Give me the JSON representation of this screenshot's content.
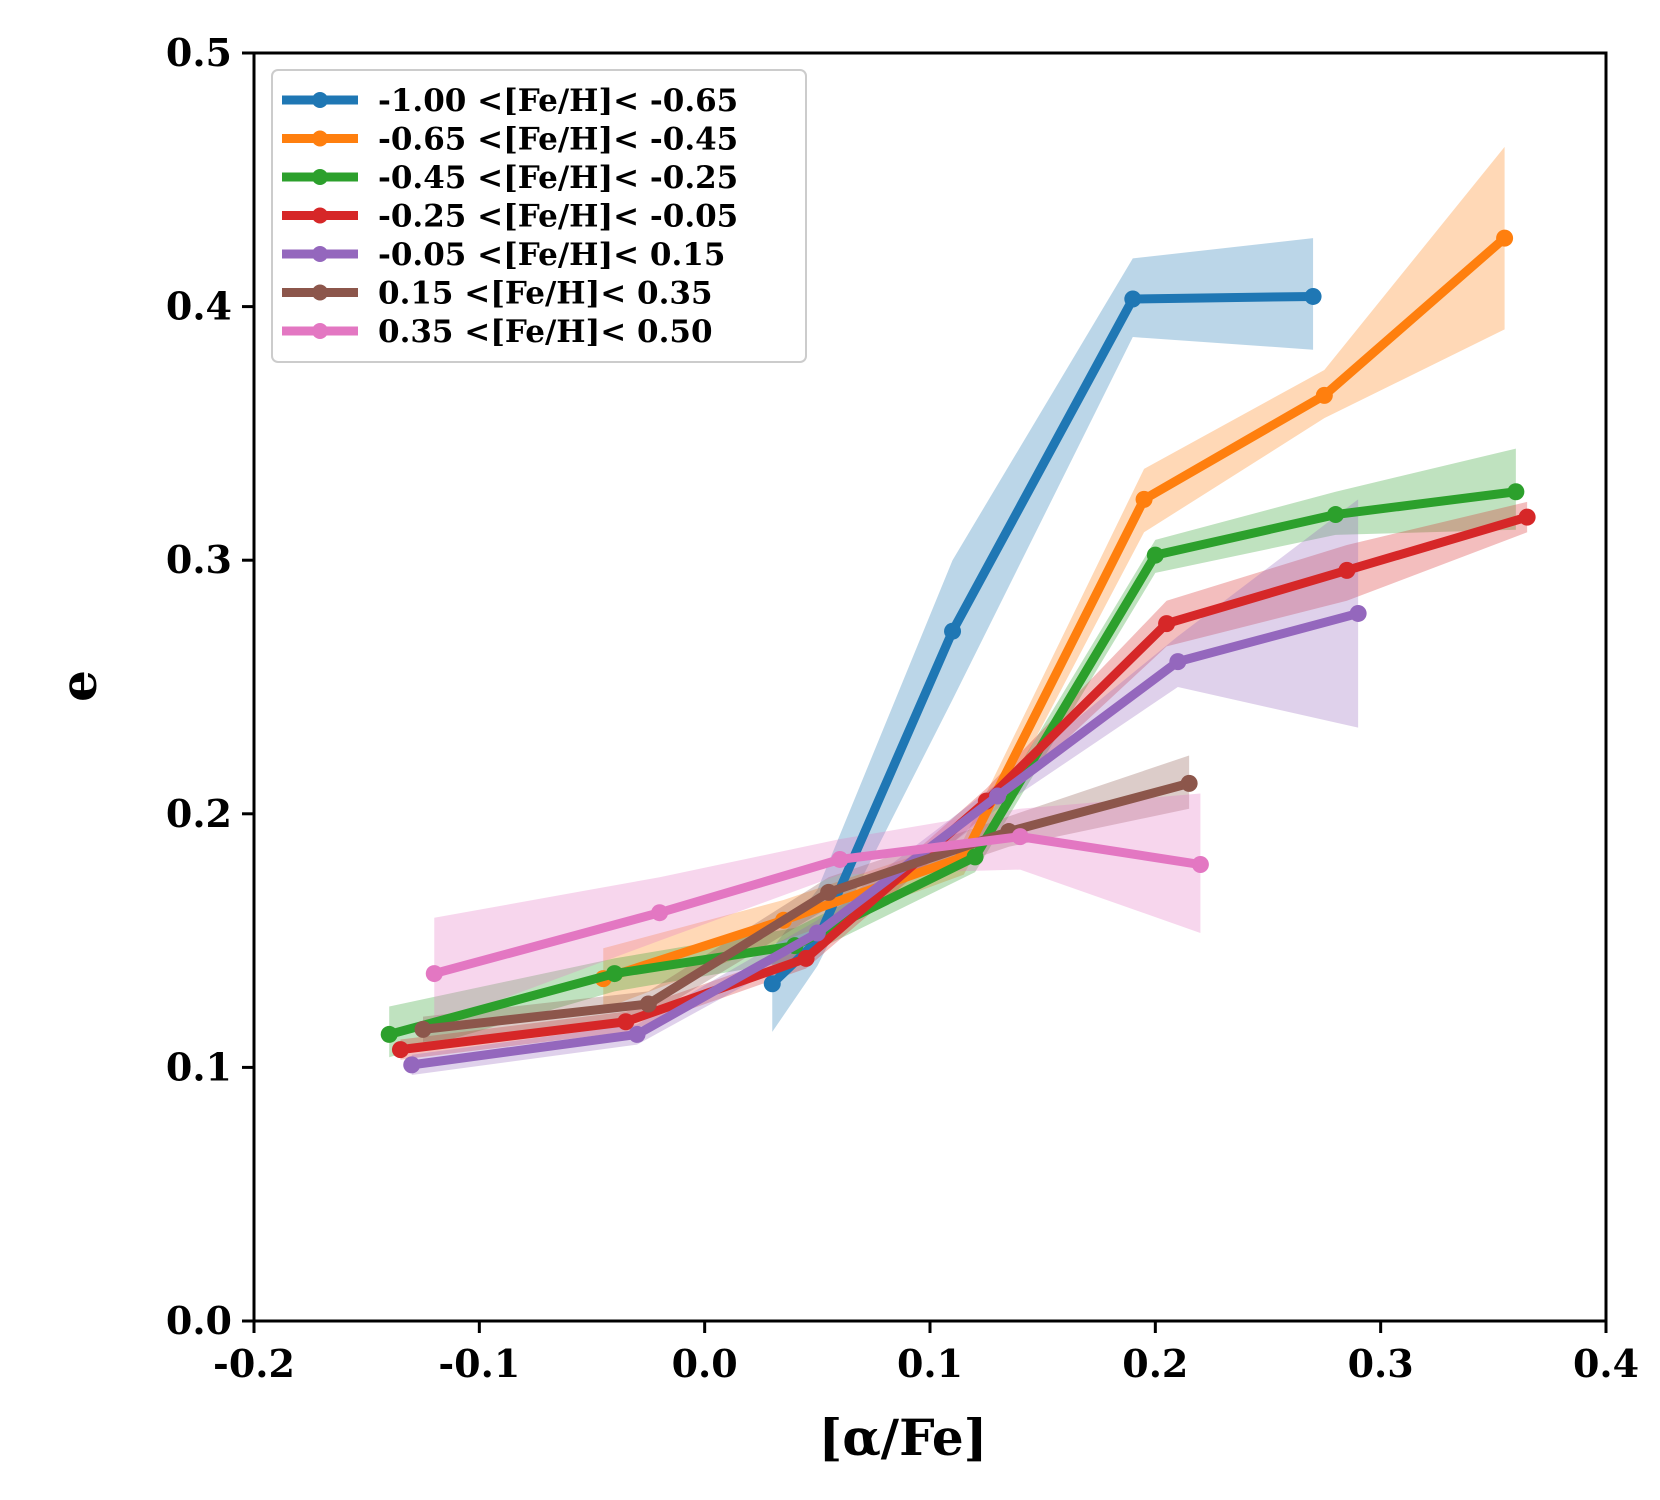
{
  "chart_data": {
    "type": "line",
    "xlabel": "[α/Fe]",
    "ylabel": "e",
    "xlim": [
      -0.2,
      0.4
    ],
    "ylim": [
      0.0,
      0.5
    ],
    "xticks": [
      "-0.2",
      "-0.1",
      "0.0",
      "0.1",
      "0.2",
      "0.3",
      "0.4"
    ],
    "yticks": [
      "0.0",
      "0.1",
      "0.2",
      "0.3",
      "0.4",
      "0.5"
    ],
    "legend_position": "top-left",
    "series": [
      {
        "name": "-1.00 <[Fe/H]< -0.65",
        "color": "#1f77b4",
        "x": [
          0.03,
          0.05,
          0.11,
          0.19,
          0.27
        ],
        "y": [
          0.133,
          0.15,
          0.272,
          0.403,
          0.404
        ],
        "band_low": [
          0.114,
          0.14,
          0.245,
          0.388,
          0.383
        ],
        "band_high": [
          0.147,
          0.17,
          0.3,
          0.419,
          0.427
        ]
      },
      {
        "name": "-0.65 <[Fe/H]< -0.45",
        "color": "#ff7f0e",
        "x": [
          -0.045,
          0.035,
          0.115,
          0.195,
          0.275,
          0.355
        ],
        "y": [
          0.135,
          0.158,
          0.183,
          0.324,
          0.365,
          0.427
        ],
        "band_low": [
          0.123,
          0.15,
          0.176,
          0.311,
          0.356,
          0.391
        ],
        "band_high": [
          0.147,
          0.166,
          0.19,
          0.336,
          0.375,
          0.463
        ]
      },
      {
        "name": "-0.45 <[Fe/H]< -0.25",
        "color": "#2ca02c",
        "x": [
          -0.14,
          -0.04,
          0.04,
          0.12,
          0.2,
          0.28,
          0.36
        ],
        "y": [
          0.113,
          0.137,
          0.148,
          0.183,
          0.302,
          0.318,
          0.327
        ],
        "band_low": [
          0.104,
          0.13,
          0.142,
          0.177,
          0.295,
          0.31,
          0.312
        ],
        "band_high": [
          0.124,
          0.143,
          0.155,
          0.19,
          0.308,
          0.327,
          0.344
        ]
      },
      {
        "name": "-0.25 <[Fe/H]< -0.05",
        "color": "#d62728",
        "x": [
          -0.135,
          -0.035,
          0.045,
          0.125,
          0.205,
          0.285,
          0.365
        ],
        "y": [
          0.107,
          0.118,
          0.143,
          0.205,
          0.275,
          0.296,
          0.317
        ],
        "band_low": [
          0.103,
          0.114,
          0.139,
          0.2,
          0.266,
          0.284,
          0.311
        ],
        "band_high": [
          0.111,
          0.122,
          0.147,
          0.21,
          0.284,
          0.306,
          0.323
        ]
      },
      {
        "name": "-0.05 <[Fe/H]< 0.15",
        "color": "#9467bd",
        "x": [
          -0.13,
          -0.03,
          0.05,
          0.13,
          0.21,
          0.29
        ],
        "y": [
          0.101,
          0.113,
          0.153,
          0.207,
          0.26,
          0.279
        ],
        "band_low": [
          0.097,
          0.109,
          0.148,
          0.202,
          0.25,
          0.234
        ],
        "band_high": [
          0.105,
          0.117,
          0.158,
          0.212,
          0.27,
          0.324
        ]
      },
      {
        "name": "0.15 <[Fe/H]< 0.35",
        "color": "#8c564b",
        "x": [
          -0.125,
          -0.025,
          0.055,
          0.135,
          0.215
        ],
        "y": [
          0.115,
          0.125,
          0.169,
          0.193,
          0.212
        ],
        "band_low": [
          0.11,
          0.12,
          0.163,
          0.187,
          0.202
        ],
        "band_high": [
          0.12,
          0.13,
          0.175,
          0.199,
          0.223
        ]
      },
      {
        "name": "0.35 <[Fe/H]< 0.50",
        "color": "#e377c2",
        "x": [
          -0.12,
          -0.02,
          0.06,
          0.14,
          0.22
        ],
        "y": [
          0.137,
          0.161,
          0.182,
          0.191,
          0.18
        ],
        "band_low": [
          0.117,
          0.15,
          0.176,
          0.178,
          0.153
        ],
        "band_high": [
          0.159,
          0.175,
          0.19,
          0.202,
          0.208
        ]
      }
    ]
  }
}
